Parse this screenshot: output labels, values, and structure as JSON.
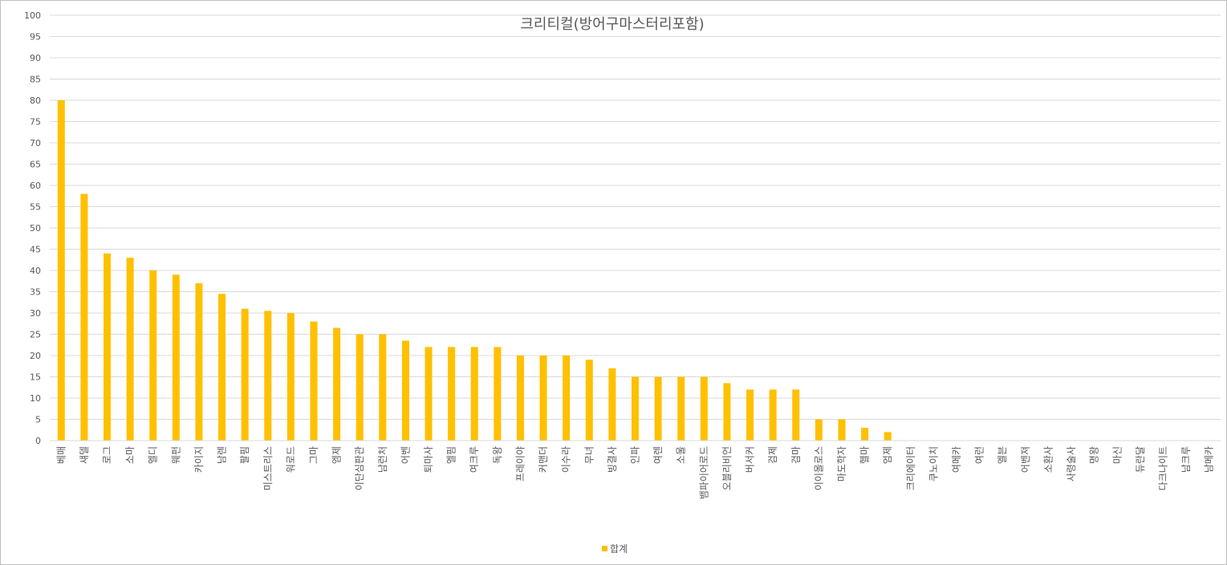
{
  "chart_data": {
    "type": "bar",
    "title": "크리티컬(방어구마스터리포함)",
    "xlabel": "",
    "ylabel": "",
    "ylim": [
      0,
      100
    ],
    "yticks": [
      0,
      5,
      10,
      15,
      20,
      25,
      30,
      35,
      40,
      45,
      50,
      55,
      60,
      65,
      70,
      75,
      80,
      85,
      90,
      95,
      100
    ],
    "grid": true,
    "legend": "bottom",
    "color": "#ffc000",
    "categories": [
      "베매",
      "섀델",
      "로그",
      "소마",
      "엘디",
      "웨펀",
      "카이지",
      "남렌",
      "팔핌",
      "미스트리스",
      "워로드",
      "그마",
      "엠제",
      "이단심판관",
      "남런처",
      "어벤",
      "퇴마사",
      "엘핌",
      "여크루",
      "독왕",
      "프레이야",
      "커맨더",
      "이수라",
      "무녀",
      "빙결사",
      "인파",
      "여렌",
      "소울",
      "뱀파이어로드",
      "오블리비언",
      "버서커",
      "검제",
      "검마",
      "이이올로스",
      "마도학자",
      "헬마",
      "엄제",
      "크리에이터",
      "쿠노이치",
      "여메카",
      "여런",
      "엘븐",
      "어벤져",
      "소환사",
      "사령술사",
      "명왕",
      "마신",
      "듀란달",
      "다크나이트",
      "남크루",
      "남메카"
    ],
    "series": [
      {
        "name": "합계",
        "values": [
          80,
          58,
          44,
          43,
          40,
          39,
          37,
          34.5,
          31,
          30.5,
          30,
          28,
          26.5,
          25,
          25,
          23.5,
          22,
          22,
          22,
          22,
          20,
          20,
          20,
          19,
          17,
          15,
          15,
          15,
          15,
          13.5,
          12,
          12,
          12,
          5,
          5,
          3,
          2,
          0,
          0,
          0,
          0,
          0,
          0,
          0,
          0,
          0,
          0,
          0,
          0,
          0,
          0
        ]
      }
    ]
  }
}
